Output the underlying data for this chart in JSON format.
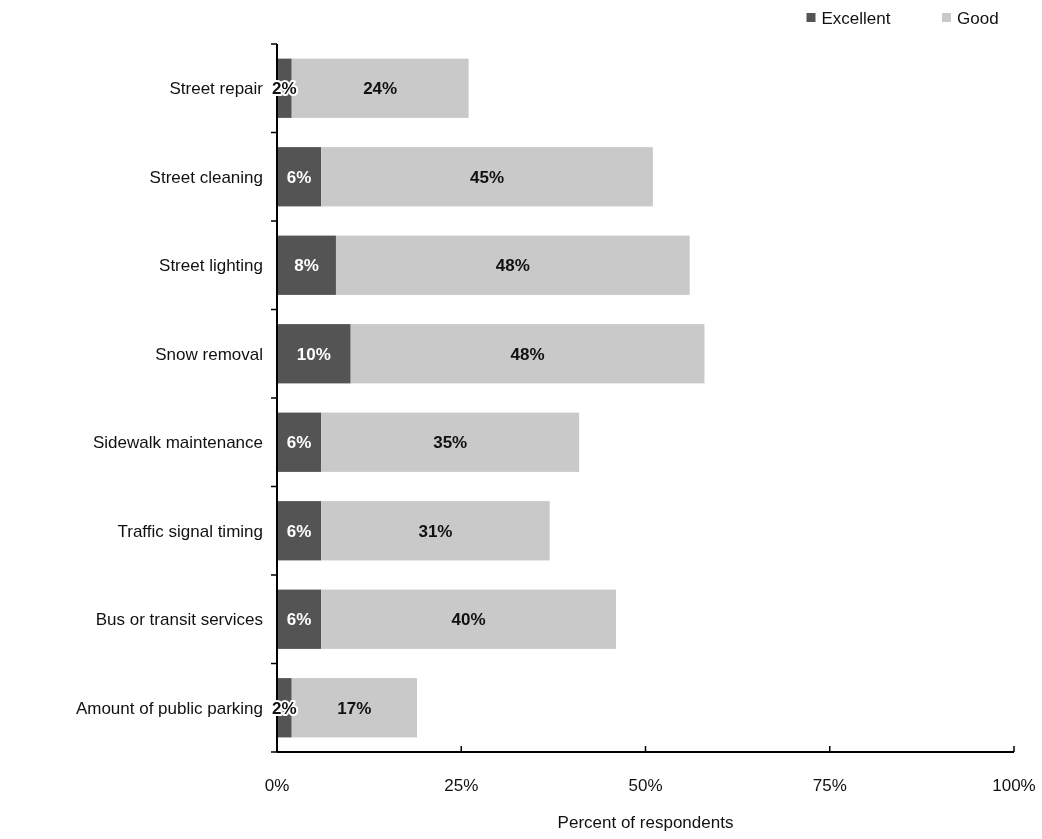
{
  "chart_data": {
    "type": "bar",
    "orientation": "horizontal",
    "stacked": true,
    "categories": [
      "Street repair",
      "Street cleaning",
      "Street lighting",
      "Snow removal",
      "Sidewalk maintenance",
      "Traffic signal timing",
      "Bus or transit services",
      "Amount of public parking"
    ],
    "series": [
      {
        "name": "Excellent",
        "color": "#545454",
        "values": [
          2,
          6,
          8,
          10,
          6,
          6,
          6,
          2
        ],
        "value_labels": [
          "2%",
          "6%",
          "8%",
          "10%",
          "6%",
          "6%",
          "6%",
          "2%"
        ]
      },
      {
        "name": "Good",
        "color": "#c9c9c9",
        "values": [
          24,
          45,
          48,
          48,
          35,
          31,
          40,
          17
        ],
        "value_labels": [
          "24%",
          "45%",
          "48%",
          "48%",
          "35%",
          "31%",
          "40%",
          "17%"
        ]
      }
    ],
    "xlabel": "Percent of respondents",
    "xlim": [
      0,
      100
    ],
    "xticks": [
      {
        "value": 0,
        "label": "0%"
      },
      {
        "value": 25,
        "label": "25%"
      },
      {
        "value": 50,
        "label": "50%"
      },
      {
        "value": 75,
        "label": "75%"
      },
      {
        "value": 100,
        "label": "100%"
      }
    ],
    "legend": "top right"
  }
}
